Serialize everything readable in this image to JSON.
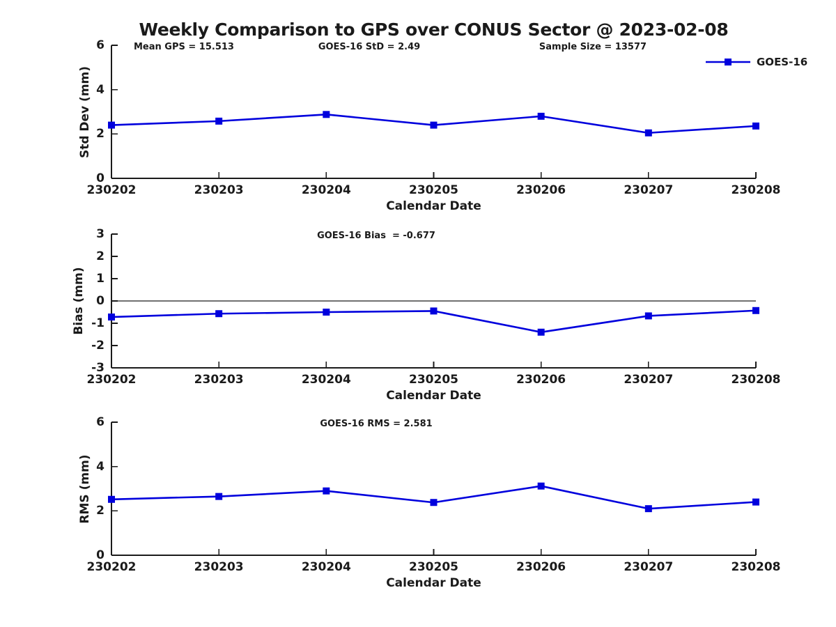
{
  "title": "Weekly Comparison to GPS over CONUS Sector @ 2023-02-08",
  "legend": {
    "label": "GOES-16",
    "position": "top-right",
    "box": "off"
  },
  "colors": {
    "line": "#0000dd",
    "axis": "#1a1a1a",
    "text": "#1a1a1a",
    "zero_line": "#1a1a1a"
  },
  "x_axis": {
    "label": "Calendar Date",
    "categories": [
      "230202",
      "230203",
      "230204",
      "230205",
      "230206",
      "230207",
      "230208"
    ]
  },
  "chart_data": [
    {
      "type": "line",
      "panel": "std-dev",
      "ylabel": "Std Dev (mm)",
      "xlabel": "Calendar Date",
      "ylim": [
        0,
        6
      ],
      "yticks": [
        0,
        2,
        4,
        6
      ],
      "grid": "off",
      "zero_line": false,
      "annotations": [
        "Mean GPS = 15.513",
        "GOES-16 StD = 2.49",
        "Sample Size = 13577"
      ],
      "categories": [
        "230202",
        "230203",
        "230204",
        "230205",
        "230206",
        "230207",
        "230208"
      ],
      "series": [
        {
          "name": "GOES-16",
          "marker": "square",
          "values": [
            2.4,
            2.58,
            2.88,
            2.4,
            2.8,
            2.05,
            2.36
          ]
        }
      ]
    },
    {
      "type": "line",
      "panel": "bias",
      "ylabel": "Bias (mm)",
      "xlabel": "Calendar Date",
      "ylim": [
        -3,
        3
      ],
      "yticks": [
        -3,
        -2,
        -1,
        0,
        1,
        2,
        3
      ],
      "grid": "off",
      "zero_line": true,
      "annotations": [
        "GOES-16 Bias  = -0.677"
      ],
      "categories": [
        "230202",
        "230203",
        "230204",
        "230205",
        "230206",
        "230207",
        "230208"
      ],
      "series": [
        {
          "name": "GOES-16",
          "marker": "square",
          "values": [
            -0.72,
            -0.57,
            -0.5,
            -0.45,
            -1.4,
            -0.67,
            -0.43
          ]
        }
      ]
    },
    {
      "type": "line",
      "panel": "rms",
      "ylabel": "RMS (mm)",
      "xlabel": "Calendar Date",
      "ylim": [
        0,
        6
      ],
      "yticks": [
        0,
        2,
        4,
        6
      ],
      "grid": "off",
      "zero_line": false,
      "annotations": [
        "GOES-16 RMS = 2.581"
      ],
      "categories": [
        "230202",
        "230203",
        "230204",
        "230205",
        "230206",
        "230207",
        "230208"
      ],
      "series": [
        {
          "name": "GOES-16",
          "marker": "square",
          "values": [
            2.52,
            2.65,
            2.9,
            2.38,
            3.12,
            2.1,
            2.4
          ]
        }
      ]
    }
  ]
}
